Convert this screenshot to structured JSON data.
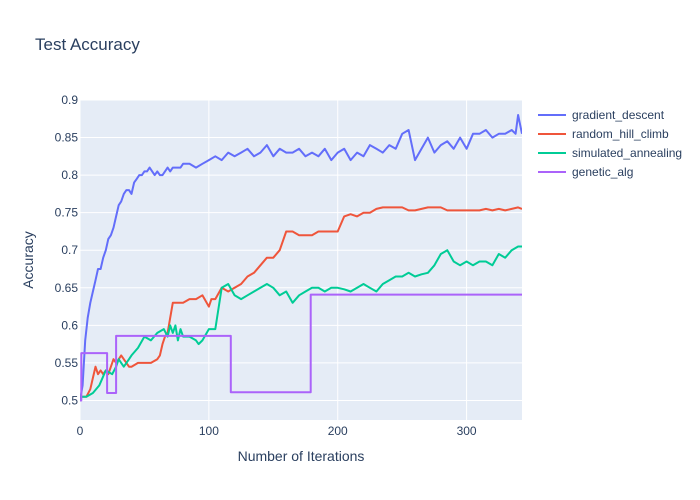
{
  "chart_data": {
    "type": "line",
    "title": "Test Accuracy",
    "xlabel": "Number of Iterations",
    "ylabel": "Accuracy",
    "xlim": [
      0,
      343
    ],
    "ylim": [
      0.474,
      0.9
    ],
    "xticks": [
      0,
      100,
      200,
      300
    ],
    "yticks": [
      0.5,
      0.55,
      0.6,
      0.65,
      0.7,
      0.75,
      0.8,
      0.85,
      0.9
    ],
    "grid": true,
    "legend_position": "top-right",
    "background_color": "#E5ECF6",
    "series": [
      {
        "name": "gradient_descent",
        "color": "#636EFA",
        "x": [
          0,
          2,
          4,
          6,
          8,
          10,
          12,
          14,
          16,
          18,
          20,
          22,
          24,
          26,
          28,
          30,
          32,
          34,
          36,
          38,
          40,
          42,
          44,
          46,
          48,
          50,
          52,
          54,
          56,
          58,
          60,
          62,
          64,
          66,
          68,
          70,
          72,
          74,
          76,
          78,
          80,
          85,
          90,
          95,
          100,
          105,
          110,
          115,
          120,
          125,
          130,
          135,
          140,
          145,
          150,
          155,
          160,
          165,
          170,
          175,
          180,
          185,
          190,
          195,
          200,
          205,
          210,
          215,
          220,
          225,
          230,
          235,
          240,
          245,
          250,
          255,
          260,
          265,
          270,
          275,
          280,
          285,
          290,
          295,
          300,
          305,
          310,
          315,
          320,
          325,
          330,
          335,
          338,
          340,
          343
        ],
        "y": [
          0.5,
          0.52,
          0.58,
          0.61,
          0.63,
          0.645,
          0.66,
          0.675,
          0.675,
          0.69,
          0.7,
          0.715,
          0.72,
          0.73,
          0.745,
          0.76,
          0.765,
          0.775,
          0.78,
          0.78,
          0.775,
          0.79,
          0.795,
          0.8,
          0.8,
          0.805,
          0.805,
          0.81,
          0.805,
          0.8,
          0.805,
          0.8,
          0.8,
          0.805,
          0.81,
          0.805,
          0.81,
          0.81,
          0.81,
          0.81,
          0.815,
          0.815,
          0.81,
          0.815,
          0.82,
          0.825,
          0.82,
          0.83,
          0.825,
          0.83,
          0.835,
          0.825,
          0.83,
          0.84,
          0.825,
          0.835,
          0.83,
          0.83,
          0.835,
          0.825,
          0.83,
          0.825,
          0.835,
          0.82,
          0.83,
          0.835,
          0.82,
          0.83,
          0.825,
          0.84,
          0.835,
          0.83,
          0.84,
          0.835,
          0.855,
          0.86,
          0.82,
          0.835,
          0.85,
          0.83,
          0.84,
          0.845,
          0.835,
          0.85,
          0.835,
          0.855,
          0.855,
          0.86,
          0.85,
          0.855,
          0.855,
          0.86,
          0.855,
          0.88,
          0.855
        ]
      },
      {
        "name": "random_hill_climb",
        "color": "#EF553B",
        "x": [
          0,
          5,
          8,
          10,
          12,
          14,
          16,
          18,
          20,
          22,
          24,
          26,
          28,
          30,
          32,
          34,
          36,
          38,
          40,
          45,
          50,
          55,
          60,
          62,
          64,
          66,
          68,
          70,
          72,
          75,
          80,
          85,
          90,
          95,
          100,
          102,
          105,
          110,
          115,
          120,
          125,
          130,
          135,
          140,
          145,
          150,
          155,
          160,
          165,
          170,
          175,
          180,
          185,
          190,
          195,
          200,
          205,
          210,
          215,
          220,
          225,
          230,
          235,
          240,
          245,
          250,
          255,
          260,
          265,
          270,
          275,
          280,
          285,
          290,
          295,
          300,
          305,
          310,
          315,
          320,
          325,
          330,
          335,
          340,
          343
        ],
        "y": [
          0.505,
          0.505,
          0.515,
          0.53,
          0.545,
          0.535,
          0.54,
          0.535,
          0.54,
          0.535,
          0.545,
          0.555,
          0.55,
          0.555,
          0.56,
          0.555,
          0.55,
          0.545,
          0.545,
          0.55,
          0.55,
          0.55,
          0.555,
          0.56,
          0.575,
          0.585,
          0.59,
          0.61,
          0.63,
          0.63,
          0.63,
          0.635,
          0.635,
          0.64,
          0.625,
          0.635,
          0.635,
          0.65,
          0.645,
          0.65,
          0.655,
          0.665,
          0.67,
          0.68,
          0.69,
          0.69,
          0.7,
          0.725,
          0.725,
          0.72,
          0.72,
          0.72,
          0.725,
          0.725,
          0.725,
          0.725,
          0.745,
          0.748,
          0.745,
          0.75,
          0.75,
          0.755,
          0.757,
          0.757,
          0.757,
          0.757,
          0.753,
          0.753,
          0.755,
          0.757,
          0.757,
          0.757,
          0.753,
          0.753,
          0.753,
          0.753,
          0.753,
          0.753,
          0.755,
          0.753,
          0.755,
          0.753,
          0.755,
          0.757,
          0.755
        ]
      },
      {
        "name": "simulated_annealing",
        "color": "#00CC96",
        "x": [
          0,
          5,
          10,
          15,
          20,
          25,
          28,
          30,
          32,
          34,
          36,
          38,
          40,
          45,
          50,
          55,
          60,
          65,
          68,
          70,
          72,
          74,
          76,
          78,
          80,
          85,
          90,
          92,
          95,
          100,
          105,
          110,
          115,
          120,
          125,
          130,
          135,
          140,
          145,
          150,
          155,
          160,
          165,
          170,
          175,
          180,
          185,
          190,
          195,
          200,
          205,
          210,
          215,
          220,
          225,
          230,
          235,
          240,
          245,
          250,
          255,
          260,
          265,
          270,
          275,
          280,
          285,
          290,
          295,
          300,
          305,
          310,
          315,
          320,
          325,
          330,
          335,
          340,
          343
        ],
        "y": [
          0.505,
          0.505,
          0.51,
          0.52,
          0.54,
          0.535,
          0.545,
          0.555,
          0.55,
          0.545,
          0.55,
          0.555,
          0.56,
          0.57,
          0.585,
          0.58,
          0.59,
          0.595,
          0.585,
          0.6,
          0.59,
          0.6,
          0.58,
          0.595,
          0.585,
          0.585,
          0.58,
          0.575,
          0.58,
          0.595,
          0.595,
          0.65,
          0.655,
          0.64,
          0.635,
          0.64,
          0.645,
          0.65,
          0.655,
          0.65,
          0.64,
          0.645,
          0.63,
          0.64,
          0.645,
          0.65,
          0.65,
          0.645,
          0.65,
          0.65,
          0.648,
          0.645,
          0.65,
          0.655,
          0.65,
          0.645,
          0.655,
          0.66,
          0.665,
          0.665,
          0.67,
          0.665,
          0.668,
          0.67,
          0.68,
          0.695,
          0.7,
          0.685,
          0.68,
          0.685,
          0.68,
          0.685,
          0.685,
          0.68,
          0.695,
          0.69,
          0.7,
          0.705,
          0.705
        ]
      },
      {
        "name": "genetic_alg",
        "color": "#AB63FA",
        "x": [
          0,
          1,
          1,
          21,
          21,
          28,
          28,
          117,
          117,
          179,
          179,
          343
        ],
        "y": [
          0.5,
          0.5,
          0.563,
          0.563,
          0.51,
          0.51,
          0.586,
          0.586,
          0.511,
          0.511,
          0.641,
          0.641
        ]
      }
    ]
  }
}
